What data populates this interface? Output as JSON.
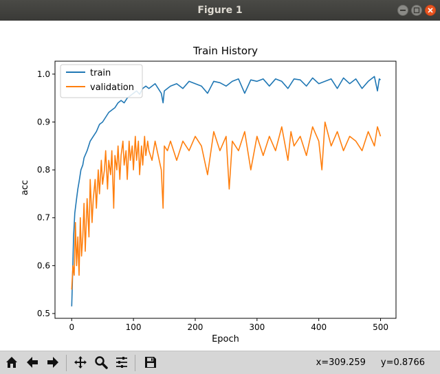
{
  "window": {
    "title": "Figure 1",
    "controls": [
      "minimize",
      "maximize",
      "close"
    ]
  },
  "toolbar": {
    "buttons": [
      {
        "name": "home-icon"
      },
      {
        "name": "back-icon"
      },
      {
        "name": "forward-icon"
      },
      {
        "name": "pan-icon"
      },
      {
        "name": "zoom-icon"
      },
      {
        "name": "configure-subplots-icon"
      },
      {
        "name": "save-icon"
      }
    ],
    "coord_x": "x=309.259",
    "coord_y": "y=0.8766"
  },
  "chart_data": {
    "type": "line",
    "title": "Train History",
    "xlabel": "Epoch",
    "ylabel": "acc",
    "xlim": [
      -27,
      525
    ],
    "ylim": [
      0.49,
      1.027
    ],
    "xticks": [
      "0",
      "100",
      "200",
      "300",
      "400",
      "500"
    ],
    "yticks": [
      "0.5",
      "0.6",
      "0.7",
      "0.8",
      "0.9",
      "1.0"
    ],
    "legend_position": "upper-left",
    "grid": false,
    "series": [
      {
        "name": "train",
        "color": "#1f77b4",
        "x": [
          0,
          1,
          2,
          3,
          5,
          8,
          10,
          12,
          15,
          18,
          20,
          25,
          30,
          35,
          40,
          45,
          50,
          55,
          60,
          65,
          70,
          75,
          80,
          85,
          90,
          95,
          100,
          105,
          110,
          115,
          120,
          125,
          130,
          135,
          140,
          145,
          148,
          150,
          160,
          170,
          180,
          190,
          200,
          210,
          220,
          230,
          240,
          250,
          260,
          270,
          280,
          290,
          300,
          310,
          320,
          330,
          340,
          350,
          360,
          370,
          380,
          390,
          400,
          410,
          420,
          430,
          440,
          450,
          460,
          470,
          480,
          490,
          495,
          498,
          500
        ],
        "values": [
          0.515,
          0.56,
          0.61,
          0.66,
          0.71,
          0.74,
          0.76,
          0.775,
          0.8,
          0.81,
          0.825,
          0.84,
          0.86,
          0.87,
          0.88,
          0.895,
          0.9,
          0.91,
          0.92,
          0.925,
          0.93,
          0.94,
          0.945,
          0.94,
          0.95,
          0.955,
          0.96,
          0.965,
          0.958,
          0.97,
          0.975,
          0.97,
          0.975,
          0.98,
          0.97,
          0.96,
          0.94,
          0.965,
          0.975,
          0.98,
          0.97,
          0.985,
          0.98,
          0.975,
          0.96,
          0.985,
          0.982,
          0.975,
          0.985,
          0.99,
          0.96,
          0.988,
          0.985,
          0.99,
          0.975,
          0.99,
          0.985,
          0.97,
          0.99,
          0.988,
          0.975,
          0.992,
          0.98,
          0.985,
          0.99,
          0.97,
          0.992,
          0.98,
          0.99,
          0.97,
          0.985,
          0.995,
          0.965,
          0.99,
          0.988
        ]
      },
      {
        "name": "validation",
        "color": "#ff7f0e",
        "x": [
          0,
          2,
          4,
          6,
          8,
          10,
          12,
          14,
          16,
          18,
          20,
          22,
          25,
          28,
          30,
          33,
          35,
          38,
          40,
          43,
          45,
          48,
          50,
          53,
          55,
          58,
          60,
          63,
          65,
          68,
          70,
          73,
          75,
          78,
          80,
          83,
          85,
          88,
          90,
          93,
          95,
          98,
          100,
          103,
          105,
          108,
          110,
          113,
          115,
          118,
          120,
          123,
          125,
          130,
          135,
          140,
          145,
          148,
          150,
          155,
          160,
          170,
          180,
          190,
          200,
          210,
          220,
          230,
          240,
          250,
          255,
          260,
          270,
          280,
          290,
          300,
          310,
          320,
          330,
          340,
          350,
          355,
          360,
          370,
          380,
          390,
          400,
          405,
          410,
          420,
          430,
          440,
          450,
          460,
          470,
          480,
          490,
          495,
          500
        ],
        "values": [
          0.55,
          0.6,
          0.58,
          0.69,
          0.6,
          0.66,
          0.58,
          0.7,
          0.62,
          0.66,
          0.73,
          0.63,
          0.74,
          0.66,
          0.78,
          0.69,
          0.74,
          0.78,
          0.72,
          0.8,
          0.75,
          0.82,
          0.77,
          0.8,
          0.84,
          0.76,
          0.82,
          0.79,
          0.84,
          0.72,
          0.83,
          0.8,
          0.85,
          0.78,
          0.83,
          0.86,
          0.81,
          0.84,
          0.78,
          0.86,
          0.82,
          0.85,
          0.8,
          0.87,
          0.82,
          0.86,
          0.79,
          0.85,
          0.81,
          0.87,
          0.83,
          0.86,
          0.84,
          0.82,
          0.86,
          0.83,
          0.8,
          0.72,
          0.85,
          0.84,
          0.86,
          0.82,
          0.86,
          0.84,
          0.87,
          0.85,
          0.79,
          0.88,
          0.84,
          0.87,
          0.76,
          0.86,
          0.84,
          0.88,
          0.8,
          0.87,
          0.83,
          0.87,
          0.84,
          0.89,
          0.82,
          0.88,
          0.85,
          0.87,
          0.83,
          0.89,
          0.86,
          0.8,
          0.9,
          0.85,
          0.88,
          0.84,
          0.87,
          0.86,
          0.84,
          0.88,
          0.85,
          0.89,
          0.87
        ]
      }
    ]
  }
}
